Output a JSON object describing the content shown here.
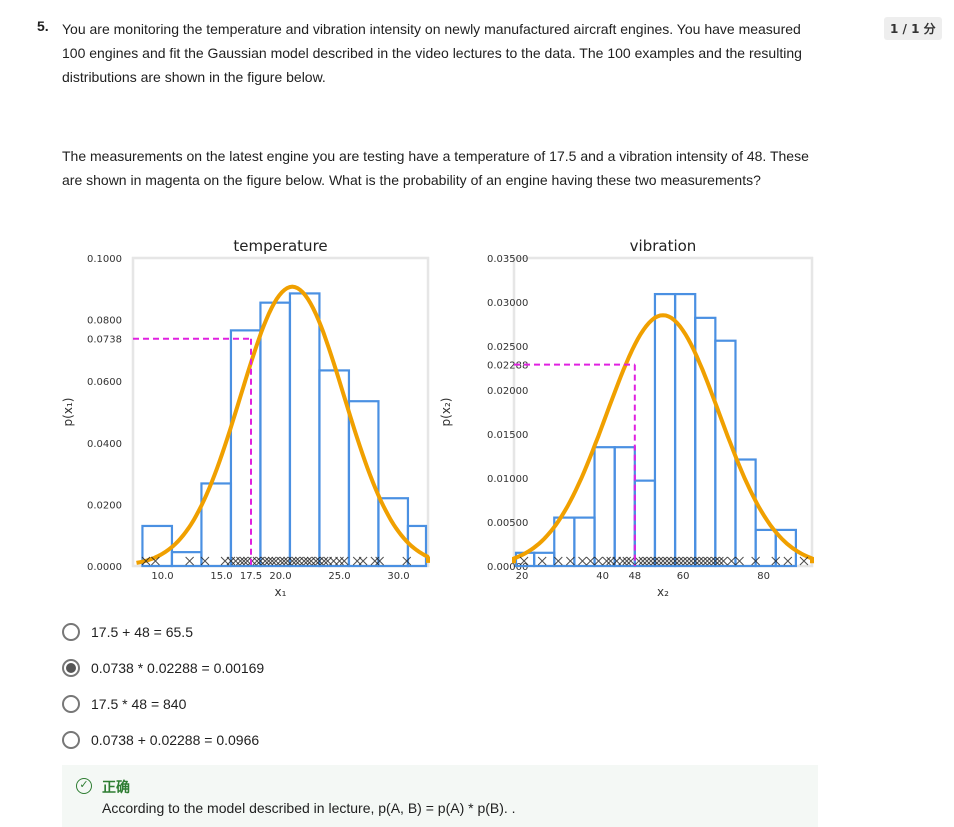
{
  "question": {
    "number": "5.",
    "text": "You are monitoring the temperature and vibration intensity on newly manufactured aircraft engines. You have measured 100 engines and fit the Gaussian model described in the video lectures to the data. The 100 examples and the resulting distributions are shown in the figure below.",
    "text2": "The measurements on the latest engine you are testing have a temperature of 17.5 and a vibration intensity of 48. These are shown in magenta on the figure below. What is the probability of an engine having these two measurements?",
    "score": "1 / 1 分"
  },
  "colors": {
    "histogram": "#4a90e2",
    "gaussian": "#f0a000",
    "marker": "#e020e0",
    "correct": "#2e7d32"
  },
  "chart_data": [
    {
      "type": "bar",
      "title": "temperature",
      "xlabel": "x₁",
      "ylabel": "p(x₁)",
      "xlim": [
        7.5,
        32.5
      ],
      "ylim": [
        0,
        0.1
      ],
      "ytick_labels": [
        "0.1000",
        "0.0800",
        "0.0738",
        "0.0600",
        "0.0400",
        "0.0200",
        "0.0000"
      ],
      "yticks": [
        0.1,
        0.08,
        0.0738,
        0.06,
        0.04,
        0.02,
        0.0
      ],
      "xtick_labels": [
        "10.0",
        "15.0",
        "17.5",
        "20.0",
        "25.0",
        "30.0"
      ],
      "xticks": [
        10,
        15,
        17.5,
        20,
        25,
        30
      ],
      "bins": [
        [
          8.3,
          10.8
        ],
        [
          10.8,
          13.3
        ],
        [
          13.3,
          15.8
        ],
        [
          15.8,
          18.3
        ],
        [
          18.3,
          20.8
        ],
        [
          20.8,
          23.3
        ],
        [
          23.3,
          25.8
        ],
        [
          25.8,
          28.3
        ],
        [
          28.3,
          30.8
        ],
        [
          30.8,
          33.3
        ]
      ],
      "values": [
        0.013,
        0.0045,
        0.0268,
        0.0765,
        0.0855,
        0.0885,
        0.0635,
        0.0535,
        0.022,
        0.013
      ],
      "gaussian": {
        "mean": 21.0,
        "std": 4.4
      },
      "samples": [
        8.6,
        9.4,
        12.3,
        13.6,
        15.3,
        15.8,
        16.2,
        16.6,
        16.9,
        17.2,
        17.6,
        18.0,
        18.3,
        18.7,
        19.0,
        19.3,
        19.6,
        20.0,
        20.3,
        20.6,
        21.0,
        21.3,
        21.6,
        22.0,
        22.3,
        22.6,
        23.0,
        23.3,
        23.7,
        24.0,
        24.5,
        25.0,
        25.4,
        26.5,
        27.0,
        28.0,
        28.4,
        30.7
      ],
      "marker": {
        "x": 17.5,
        "y": 0.0738
      }
    },
    {
      "type": "bar",
      "title": "vibration",
      "xlabel": "x₂",
      "ylabel": "p(x₂)",
      "xlim": [
        18,
        92
      ],
      "ylim": [
        0,
        0.035
      ],
      "ytick_labels": [
        "0.03500",
        "0.03000",
        "0.02500",
        "0.02288",
        "0.02000",
        "0.01500",
        "0.01000",
        "0.00500",
        "0.00000"
      ],
      "yticks": [
        0.035,
        0.03,
        0.025,
        0.02288,
        0.02,
        0.015,
        0.01,
        0.005,
        0.0
      ],
      "xtick_labels": [
        "20",
        "40",
        "48",
        "60",
        "80"
      ],
      "xticks": [
        20,
        40,
        48,
        60,
        80
      ],
      "bins": [
        [
          18,
          23
        ],
        [
          23,
          28
        ],
        [
          28,
          33
        ],
        [
          33,
          38
        ],
        [
          38,
          43
        ],
        [
          43,
          48
        ],
        [
          48,
          53
        ],
        [
          53,
          58
        ],
        [
          58,
          63
        ],
        [
          63,
          68
        ],
        [
          68,
          73
        ],
        [
          73,
          78
        ],
        [
          78,
          83
        ],
        [
          83,
          88
        ]
      ],
      "values": [
        0.0015,
        0.0015,
        0.0055,
        0.0055,
        0.0135,
        0.0135,
        0.0097,
        0.0309,
        0.0309,
        0.0282,
        0.0256,
        0.0121,
        0.0041,
        0.0041
      ],
      "gaussian": {
        "mean": 55.0,
        "std": 14.0
      },
      "samples": [
        20.5,
        25,
        29,
        32,
        35,
        37,
        39,
        41,
        42,
        43.5,
        45,
        46,
        47,
        49,
        50,
        51,
        52,
        53,
        54,
        55,
        56,
        57,
        58,
        59,
        60,
        61,
        62,
        63,
        64,
        65,
        66,
        67,
        68,
        69,
        70,
        72,
        74,
        78,
        83,
        86,
        90
      ],
      "marker": {
        "x": 48,
        "y": 0.02288
      }
    }
  ],
  "options": [
    {
      "label": "17.5 + 48 = 65.5",
      "selected": false
    },
    {
      "label": "0.0738 * 0.02288 = 0.00169",
      "selected": true
    },
    {
      "label": "17.5 * 48 = 840",
      "selected": false
    },
    {
      "label": "0.0738 + 0.02288 = 0.0966",
      "selected": false
    }
  ],
  "feedback": {
    "status": "正确",
    "text": "According to the model described in lecture, p(A, B) = p(A) * p(B). ."
  }
}
